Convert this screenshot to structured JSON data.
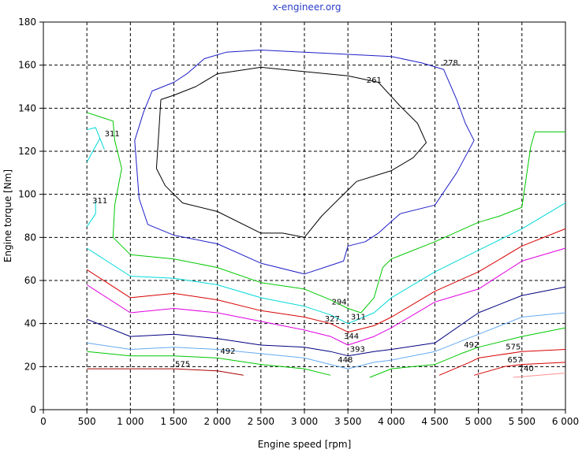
{
  "chart_data": {
    "type": "line",
    "title": "x-engineer.org",
    "xlabel": "Engine speed [rpm]",
    "ylabel": "Engine torque [Nm]",
    "xlim": [
      0,
      6000
    ],
    "ylim": [
      0,
      180
    ],
    "grid": true,
    "x_ticks": [
      0,
      500,
      1000,
      1500,
      2000,
      2500,
      3000,
      3500,
      4000,
      4500,
      5000,
      5500,
      6000
    ],
    "x_tick_labels": [
      "0",
      "500",
      "1 000",
      "1 500",
      "2 000",
      "2 500",
      "3 000",
      "3 500",
      "4 000",
      "4 500",
      "5 000",
      "5 500",
      "6 000"
    ],
    "y_ticks": [
      0,
      20,
      40,
      60,
      80,
      100,
      120,
      140,
      160,
      180
    ],
    "y_tick_labels": [
      "0",
      "20",
      "40",
      "60",
      "80",
      "100",
      "120",
      "140",
      "160",
      "180"
    ],
    "colors": {
      "title": "#2a3cc8",
      "grid": "#000000",
      "blue": "#1e1ec8",
      "black": "#000000",
      "green": "#00c800",
      "cyan": "#00d8d8",
      "red": "#d80000",
      "magenta": "#e000e0",
      "navy": "#000080",
      "lightblue": "#66aaf0",
      "darkred": "#a80000",
      "salmon": "#ff9090"
    },
    "series": [
      {
        "color": "blue",
        "points": [
          [
            1150,
            138
          ],
          [
            1250,
            148
          ],
          [
            1500,
            152
          ],
          [
            1650,
            156
          ],
          [
            1850,
            163
          ],
          [
            2100,
            166
          ],
          [
            2500,
            167
          ],
          [
            3000,
            166
          ],
          [
            3500,
            165
          ],
          [
            4000,
            164
          ],
          [
            4350,
            161
          ],
          [
            4600,
            158
          ],
          [
            4750,
            144
          ],
          [
            4850,
            133
          ],
          [
            4950,
            125
          ],
          [
            4750,
            110
          ],
          [
            4500,
            95
          ],
          [
            4100,
            91
          ],
          [
            3850,
            82
          ],
          [
            3700,
            78
          ],
          [
            3500,
            76
          ],
          [
            3450,
            69
          ],
          [
            3300,
            67
          ],
          [
            3000,
            63
          ],
          [
            2500,
            68
          ],
          [
            2000,
            77
          ],
          [
            1500,
            81
          ],
          [
            1200,
            86
          ],
          [
            1100,
            98
          ],
          [
            1050,
            125
          ],
          [
            1150,
            138
          ]
        ]
      },
      {
        "color": "black",
        "points": [
          [
            1350,
            144
          ],
          [
            1500,
            146
          ],
          [
            1750,
            150
          ],
          [
            2000,
            156
          ],
          [
            2500,
            159
          ],
          [
            3000,
            157
          ],
          [
            3500,
            155
          ],
          [
            3850,
            152
          ],
          [
            4100,
            141
          ],
          [
            4300,
            133
          ],
          [
            4400,
            124
          ],
          [
            4250,
            117
          ],
          [
            4000,
            111
          ],
          [
            3600,
            106
          ],
          [
            3400,
            98
          ],
          [
            3200,
            90
          ],
          [
            3000,
            80
          ],
          [
            2750,
            82
          ],
          [
            2500,
            82
          ],
          [
            2000,
            92
          ],
          [
            1600,
            96
          ],
          [
            1400,
            104
          ],
          [
            1300,
            112
          ],
          [
            1350,
            144
          ]
        ]
      },
      {
        "color": "green",
        "points": [
          [
            500,
            138
          ],
          [
            800,
            134
          ],
          [
            820,
            125
          ],
          [
            900,
            112
          ],
          [
            820,
            95
          ],
          [
            800,
            80
          ],
          [
            1000,
            72
          ],
          [
            1500,
            70
          ],
          [
            2000,
            66
          ],
          [
            2500,
            59
          ],
          [
            3000,
            56
          ],
          [
            3300,
            51
          ],
          [
            3500,
            47
          ],
          [
            3650,
            45
          ],
          [
            3800,
            52
          ],
          [
            3900,
            66
          ],
          [
            4000,
            70
          ],
          [
            4500,
            78
          ],
          [
            5000,
            87
          ],
          [
            5250,
            90
          ],
          [
            5500,
            94
          ],
          [
            5600,
            122
          ],
          [
            5650,
            129
          ],
          [
            6000,
            129
          ]
        ]
      },
      {
        "color": "cyan",
        "points": [
          [
            500,
            115
          ],
          [
            650,
            126
          ],
          [
            700,
            121
          ],
          [
            600,
            131
          ],
          [
            500,
            130
          ]
        ]
      },
      {
        "color": "cyan",
        "points": [
          [
            500,
            85
          ],
          [
            600,
            91
          ],
          [
            600,
            97
          ]
        ]
      },
      {
        "color": "cyan",
        "points": [
          [
            500,
            75
          ],
          [
            1000,
            62
          ],
          [
            1500,
            61
          ],
          [
            2000,
            58
          ],
          [
            2500,
            52
          ],
          [
            3000,
            48
          ],
          [
            3300,
            44
          ],
          [
            3500,
            40
          ],
          [
            3800,
            45
          ],
          [
            4000,
            52
          ],
          [
            4500,
            64
          ],
          [
            5000,
            74
          ],
          [
            5500,
            84
          ],
          [
            6000,
            96
          ]
        ]
      },
      {
        "color": "red",
        "points": [
          [
            500,
            65
          ],
          [
            1000,
            52
          ],
          [
            1500,
            54
          ],
          [
            2000,
            51
          ],
          [
            2500,
            46
          ],
          [
            3000,
            43
          ],
          [
            3300,
            40
          ],
          [
            3500,
            36
          ],
          [
            3800,
            39
          ],
          [
            4000,
            43
          ],
          [
            4500,
            55
          ],
          [
            5000,
            64
          ],
          [
            5500,
            76
          ],
          [
            6000,
            84
          ]
        ]
      },
      {
        "color": "magenta",
        "points": [
          [
            500,
            58
          ],
          [
            1000,
            45
          ],
          [
            1500,
            47
          ],
          [
            2000,
            45
          ],
          [
            2500,
            41
          ],
          [
            3000,
            37
          ],
          [
            3300,
            34
          ],
          [
            3500,
            30
          ],
          [
            3800,
            34
          ],
          [
            4000,
            38
          ],
          [
            4500,
            50
          ],
          [
            5000,
            56
          ],
          [
            5500,
            69
          ],
          [
            6000,
            75
          ]
        ]
      },
      {
        "color": "navy",
        "points": [
          [
            500,
            42
          ],
          [
            1000,
            34
          ],
          [
            1500,
            35
          ],
          [
            2000,
            33
          ],
          [
            2500,
            30
          ],
          [
            3000,
            29
          ],
          [
            3300,
            27
          ],
          [
            3500,
            25
          ],
          [
            3800,
            27
          ],
          [
            4000,
            28
          ],
          [
            4500,
            31
          ],
          [
            5000,
            45
          ],
          [
            5500,
            53
          ],
          [
            6000,
            57
          ]
        ]
      },
      {
        "color": "lightblue",
        "points": [
          [
            500,
            31
          ],
          [
            1000,
            28
          ],
          [
            1500,
            29
          ],
          [
            2000,
            28
          ],
          [
            2500,
            26
          ],
          [
            3000,
            24
          ],
          [
            3300,
            21
          ],
          [
            3500,
            19
          ],
          [
            3800,
            22
          ],
          [
            4000,
            23
          ],
          [
            4500,
            27
          ],
          [
            5000,
            35
          ],
          [
            5500,
            43
          ],
          [
            6000,
            45
          ]
        ]
      },
      {
        "color": "green",
        "points": [
          [
            500,
            27
          ],
          [
            1000,
            25
          ],
          [
            1500,
            25
          ],
          [
            2000,
            24
          ],
          [
            2500,
            21
          ],
          [
            3000,
            19
          ],
          [
            3300,
            16
          ]
        ]
      },
      {
        "color": "green",
        "points": [
          [
            3750,
            15
          ],
          [
            4000,
            19
          ],
          [
            4500,
            21
          ],
          [
            4800,
            26
          ],
          [
            5000,
            29
          ],
          [
            5500,
            34
          ],
          [
            6000,
            38
          ]
        ]
      },
      {
        "color": "darkred",
        "points": [
          [
            500,
            19
          ],
          [
            1000,
            19
          ],
          [
            1500,
            19
          ],
          [
            2000,
            18
          ],
          [
            2300,
            16
          ]
        ]
      },
      {
        "color": "red",
        "points": [
          [
            4550,
            16
          ],
          [
            4900,
            22
          ],
          [
            5000,
            24
          ],
          [
            5500,
            27
          ],
          [
            6000,
            28
          ]
        ]
      },
      {
        "color": "red",
        "points": [
          [
            4950,
            16
          ],
          [
            5300,
            20
          ],
          [
            5500,
            21
          ],
          [
            6000,
            22
          ]
        ]
      },
      {
        "color": "salmon",
        "points": [
          [
            5400,
            15
          ],
          [
            6000,
            17
          ]
        ]
      }
    ],
    "contour_labels": [
      {
        "text": "278",
        "x": 4680,
        "y": 161
      },
      {
        "text": "261",
        "x": 3800,
        "y": 153
      },
      {
        "text": "311",
        "x": 790,
        "y": 128
      },
      {
        "text": "311",
        "x": 650,
        "y": 97
      },
      {
        "text": "294",
        "x": 3400,
        "y": 50
      },
      {
        "text": "327",
        "x": 3320,
        "y": 42
      },
      {
        "text": "311",
        "x": 3620,
        "y": 43
      },
      {
        "text": "344",
        "x": 3540,
        "y": 34
      },
      {
        "text": "393",
        "x": 3610,
        "y": 28
      },
      {
        "text": "448",
        "x": 3470,
        "y": 23
      },
      {
        "text": "492",
        "x": 2120,
        "y": 27
      },
      {
        "text": "575",
        "x": 1600,
        "y": 21
      },
      {
        "text": "492",
        "x": 4920,
        "y": 30
      },
      {
        "text": "575",
        "x": 5400,
        "y": 29
      },
      {
        "text": "657",
        "x": 5420,
        "y": 23
      },
      {
        "text": "740",
        "x": 5550,
        "y": 19
      }
    ]
  }
}
